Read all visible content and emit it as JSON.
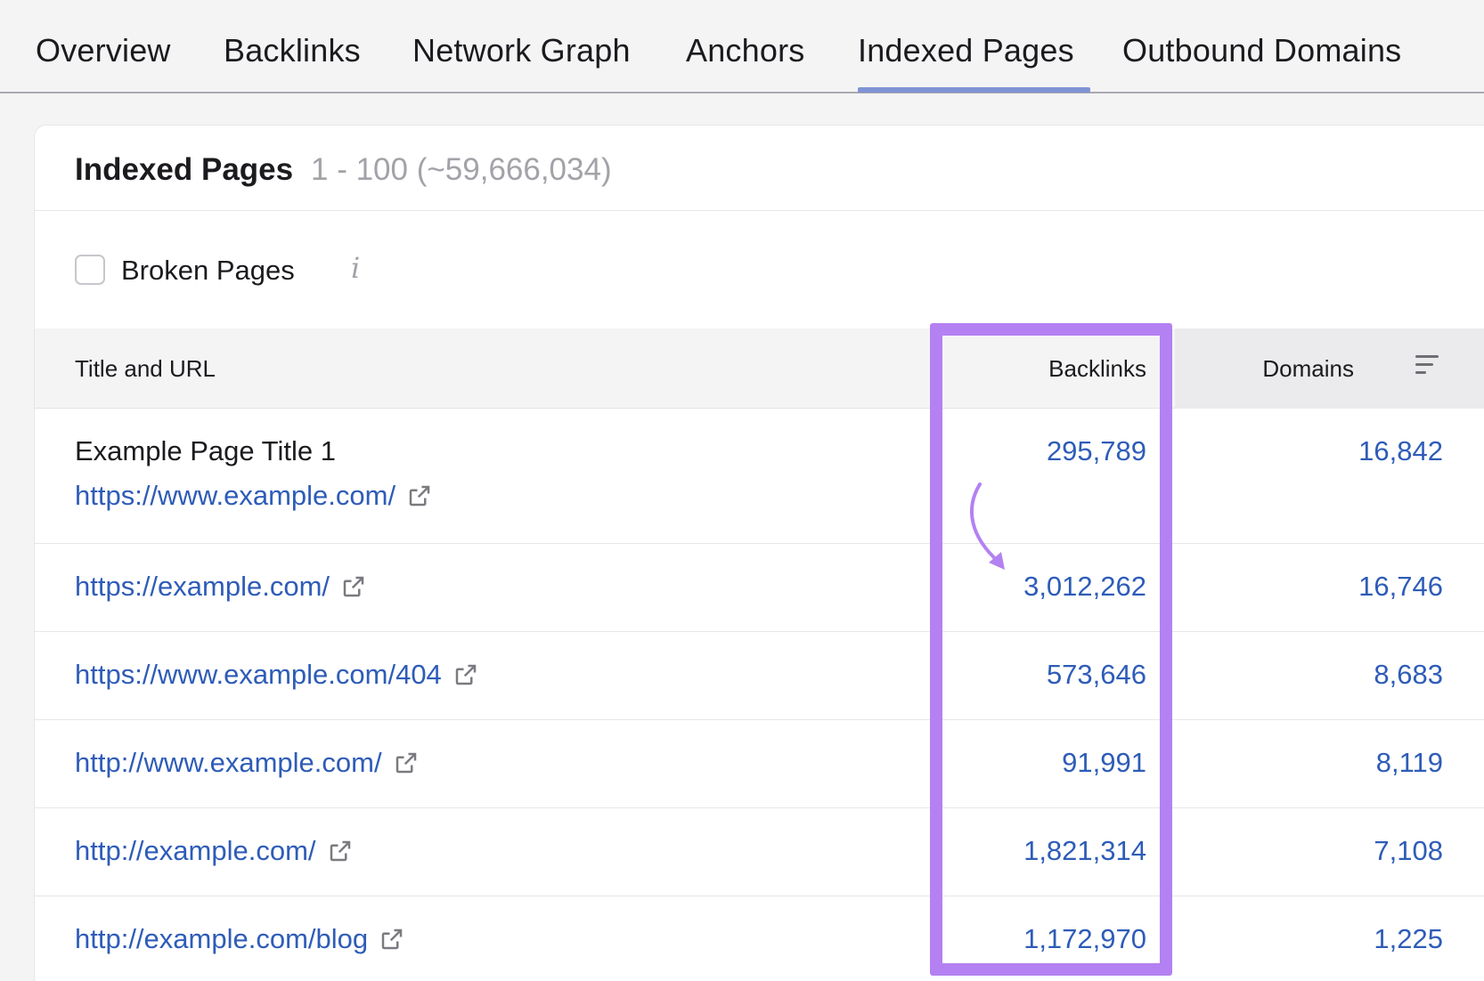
{
  "tabs": [
    {
      "label": "Overview"
    },
    {
      "label": "Backlinks"
    },
    {
      "label": "Network Graph"
    },
    {
      "label": "Anchors"
    },
    {
      "label": "Indexed Pages",
      "active": true
    },
    {
      "label": "Outbound Domains"
    }
  ],
  "card": {
    "title": "Indexed Pages",
    "range": "1 - 100 (~59,666,034)"
  },
  "filter": {
    "label": "Broken Pages",
    "checked": false,
    "info_icon": "i"
  },
  "table": {
    "columns": {
      "title_url": "Title and URL",
      "backlinks": "Backlinks",
      "domains": "Domains"
    },
    "rows": [
      {
        "title": "Example Page Title 1",
        "url": "https://www.example.com/",
        "backlinks": "295,789",
        "domains": "16,842"
      },
      {
        "title": "",
        "url": "https://example.com/",
        "backlinks": "3,012,262",
        "domains": "16,746"
      },
      {
        "title": "",
        "url": "https://www.example.com/404",
        "backlinks": "573,646",
        "domains": "8,683"
      },
      {
        "title": "",
        "url": "http://www.example.com/",
        "backlinks": "91,991",
        "domains": "8,119"
      },
      {
        "title": "",
        "url": "http://example.com/",
        "backlinks": "1,821,314",
        "domains": "7,108"
      },
      {
        "title": "",
        "url": "http://example.com/blog",
        "backlinks": "1,172,970",
        "domains": "1,225"
      }
    ]
  },
  "colors": {
    "link": "#2e5cb8",
    "highlight": "#b481f2",
    "active_tab_underline": "#7f93d4"
  }
}
